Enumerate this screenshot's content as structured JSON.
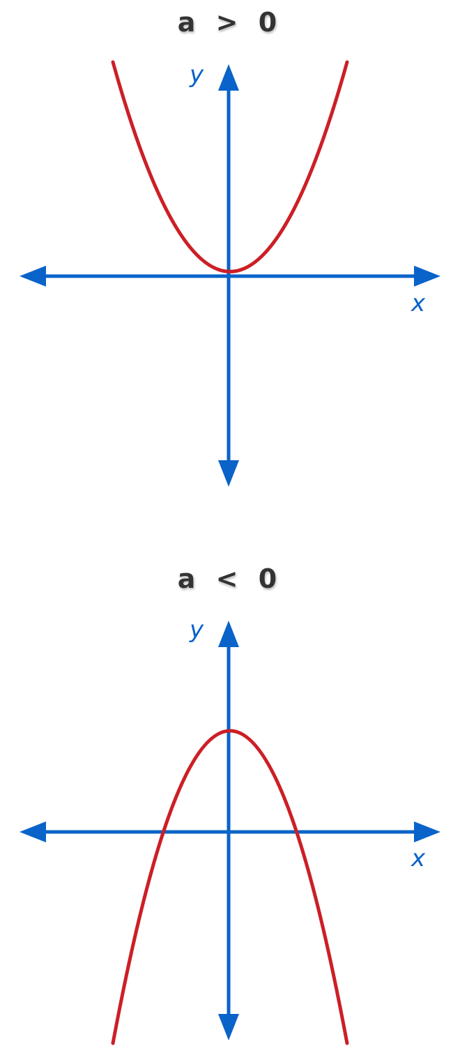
{
  "colors": {
    "axis": "#0a63c9",
    "curve": "#cc1f26",
    "label": "#333333"
  },
  "panels": [
    {
      "condition": "a > 0",
      "x_label": "x",
      "y_label": "y",
      "opens": "upward"
    },
    {
      "condition": "a < 0",
      "x_label": "x",
      "y_label": "y",
      "opens": "downward"
    }
  ]
}
